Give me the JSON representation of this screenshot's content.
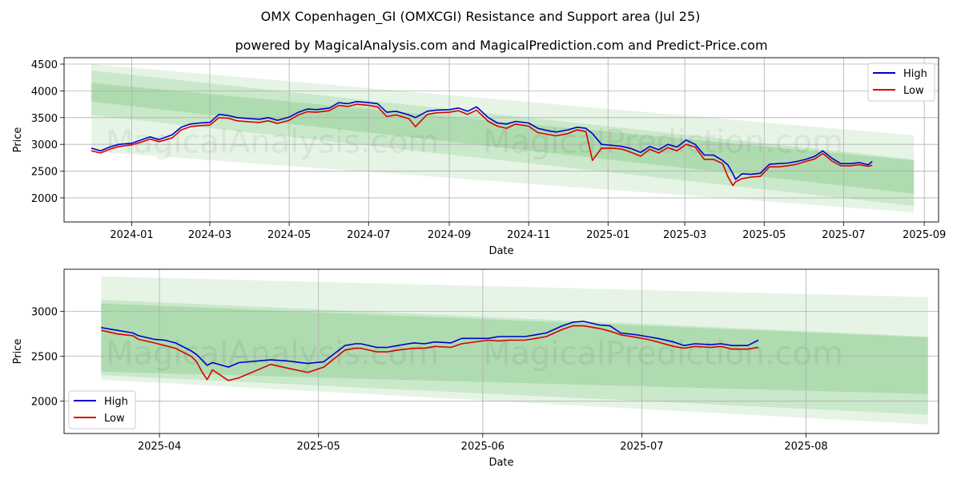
{
  "title": "OMX Copenhagen_GI (OMXCGI) Resistance and Support area (Jul 25)",
  "subtitle": "powered by MagicalAnalysis.com and MagicalPrediction.com and Predict-Price.com",
  "watermarks": [
    "MagicalAnalysis.com",
    "MagicalPrediction.com"
  ],
  "colors": {
    "high": "#0000cc",
    "low": "#dd0000",
    "band": "#4caf50",
    "grid": "#b0b0b0"
  },
  "chart_data": [
    {
      "type": "line",
      "xlabel": "Date",
      "ylabel": "Price",
      "xlim": [
        "2023-11-10",
        "2025-09-12"
      ],
      "ylim": [
        1550,
        4620
      ],
      "grid": true,
      "legend": "top-right",
      "xticks": [
        "2024-01",
        "2024-03",
        "2024-05",
        "2024-07",
        "2024-09",
        "2024-11",
        "2025-01",
        "2025-03",
        "2025-05",
        "2025-07",
        "2025-09"
      ],
      "yticks": [
        2000,
        2500,
        3000,
        3500,
        4000,
        4500
      ],
      "bands": [
        {
          "x": [
            "2023-12-01",
            "2025-08-24"
          ],
          "upper": [
            4500,
            3170
          ],
          "lower": [
            2870,
            1730
          ]
        },
        {
          "x": [
            "2023-12-01",
            "2025-08-24"
          ],
          "upper": [
            4380,
            2720
          ],
          "lower": [
            3550,
            1850
          ]
        },
        {
          "x": [
            "2023-12-01",
            "2025-08-24"
          ],
          "upper": [
            4150,
            2700
          ],
          "lower": [
            3800,
            2080
          ]
        }
      ],
      "series": [
        {
          "name": "High",
          "x": [
            "2023-12-01",
            "2023-12-08",
            "2023-12-15",
            "2023-12-22",
            "2024-01-01",
            "2024-01-08",
            "2024-01-15",
            "2024-01-22",
            "2024-02-01",
            "2024-02-08",
            "2024-02-15",
            "2024-02-22",
            "2024-03-01",
            "2024-03-08",
            "2024-03-15",
            "2024-03-22",
            "2024-04-01",
            "2024-04-08",
            "2024-04-15",
            "2024-04-22",
            "2024-05-01",
            "2024-05-08",
            "2024-05-15",
            "2024-05-22",
            "2024-06-01",
            "2024-06-08",
            "2024-06-15",
            "2024-06-22",
            "2024-07-01",
            "2024-07-08",
            "2024-07-15",
            "2024-07-22",
            "2024-08-01",
            "2024-08-06",
            "2024-08-15",
            "2024-08-22",
            "2024-09-01",
            "2024-09-08",
            "2024-09-15",
            "2024-09-22",
            "2024-10-01",
            "2024-10-08",
            "2024-10-15",
            "2024-10-22",
            "2024-11-01",
            "2024-11-08",
            "2024-11-15",
            "2024-11-22",
            "2024-12-01",
            "2024-12-08",
            "2024-12-15",
            "2024-12-20",
            "2024-12-27",
            "2025-01-05",
            "2025-01-12",
            "2025-01-19",
            "2025-01-26",
            "2025-02-02",
            "2025-02-09",
            "2025-02-16",
            "2025-02-23",
            "2025-03-02",
            "2025-03-09",
            "2025-03-16",
            "2025-03-23",
            "2025-03-30",
            "2025-04-03",
            "2025-04-07",
            "2025-04-09",
            "2025-04-14",
            "2025-04-21",
            "2025-04-28",
            "2025-05-05",
            "2025-05-12",
            "2025-05-19",
            "2025-05-26",
            "2025-06-02",
            "2025-06-09",
            "2025-06-15",
            "2025-06-22",
            "2025-06-29",
            "2025-07-06",
            "2025-07-13",
            "2025-07-20",
            "2025-07-23"
          ],
          "values": [
            2930,
            2880,
            2950,
            3000,
            3020,
            3080,
            3140,
            3090,
            3180,
            3320,
            3380,
            3400,
            3410,
            3560,
            3540,
            3500,
            3480,
            3470,
            3500,
            3450,
            3510,
            3600,
            3660,
            3650,
            3680,
            3780,
            3760,
            3800,
            3780,
            3760,
            3600,
            3620,
            3550,
            3500,
            3620,
            3640,
            3650,
            3680,
            3620,
            3700,
            3500,
            3400,
            3380,
            3430,
            3400,
            3300,
            3260,
            3230,
            3270,
            3320,
            3300,
            3200,
            3000,
            2980,
            2960,
            2920,
            2850,
            2960,
            2900,
            3000,
            2950,
            3080,
            3000,
            2800,
            2800,
            2700,
            2620,
            2450,
            2350,
            2450,
            2440,
            2460,
            2630,
            2640,
            2650,
            2680,
            2720,
            2780,
            2880,
            2740,
            2640,
            2640,
            2660,
            2620,
            2680
          ]
        },
        {
          "name": "Low",
          "x": [
            "2023-12-01",
            "2023-12-08",
            "2023-12-15",
            "2023-12-22",
            "2024-01-01",
            "2024-01-08",
            "2024-01-15",
            "2024-01-22",
            "2024-02-01",
            "2024-02-08",
            "2024-02-15",
            "2024-02-22",
            "2024-03-01",
            "2024-03-08",
            "2024-03-15",
            "2024-03-22",
            "2024-04-01",
            "2024-04-08",
            "2024-04-15",
            "2024-04-22",
            "2024-05-01",
            "2024-05-08",
            "2024-05-15",
            "2024-05-22",
            "2024-06-01",
            "2024-06-08",
            "2024-06-15",
            "2024-06-22",
            "2024-07-01",
            "2024-07-08",
            "2024-07-15",
            "2024-07-22",
            "2024-08-01",
            "2024-08-06",
            "2024-08-15",
            "2024-08-22",
            "2024-09-01",
            "2024-09-08",
            "2024-09-15",
            "2024-09-22",
            "2024-10-01",
            "2024-10-08",
            "2024-10-15",
            "2024-10-22",
            "2024-11-01",
            "2024-11-08",
            "2024-11-15",
            "2024-11-22",
            "2024-12-01",
            "2024-12-08",
            "2024-12-15",
            "2024-12-20",
            "2024-12-27",
            "2025-01-05",
            "2025-01-12",
            "2025-01-19",
            "2025-01-26",
            "2025-02-02",
            "2025-02-09",
            "2025-02-16",
            "2025-02-23",
            "2025-03-02",
            "2025-03-09",
            "2025-03-16",
            "2025-03-23",
            "2025-03-30",
            "2025-04-03",
            "2025-04-07",
            "2025-04-09",
            "2025-04-14",
            "2025-04-21",
            "2025-04-28",
            "2025-05-05",
            "2025-05-12",
            "2025-05-19",
            "2025-05-26",
            "2025-06-02",
            "2025-06-09",
            "2025-06-15",
            "2025-06-22",
            "2025-06-29",
            "2025-07-06",
            "2025-07-13",
            "2025-07-20",
            "2025-07-23"
          ],
          "values": [
            2880,
            2840,
            2910,
            2960,
            2990,
            3040,
            3100,
            3050,
            3120,
            3270,
            3330,
            3350,
            3360,
            3500,
            3490,
            3440,
            3420,
            3410,
            3440,
            3390,
            3450,
            3550,
            3610,
            3600,
            3630,
            3730,
            3710,
            3750,
            3730,
            3700,
            3520,
            3550,
            3480,
            3330,
            3560,
            3590,
            3600,
            3630,
            3560,
            3640,
            3430,
            3340,
            3300,
            3380,
            3340,
            3220,
            3190,
            3160,
            3200,
            3270,
            3240,
            2700,
            2930,
            2930,
            2910,
            2850,
            2780,
            2910,
            2840,
            2940,
            2880,
            3000,
            2950,
            2720,
            2720,
            2640,
            2400,
            2230,
            2300,
            2360,
            2390,
            2400,
            2580,
            2580,
            2600,
            2630,
            2680,
            2730,
            2830,
            2690,
            2600,
            2600,
            2620,
            2590,
            2610
          ]
        }
      ]
    },
    {
      "type": "line",
      "xlabel": "Date",
      "ylabel": "Price",
      "xlim": [
        "2025-03-14",
        "2025-08-26"
      ],
      "ylim": [
        1640,
        3470
      ],
      "grid": true,
      "legend": "bottom-left",
      "xticks": [
        "2025-04",
        "2025-05",
        "2025-06",
        "2025-07",
        "2025-08"
      ],
      "yticks": [
        2000,
        2500,
        3000
      ],
      "bands": [
        {
          "x": [
            "2025-03-21",
            "2025-08-24"
          ],
          "upper": [
            3390,
            3160
          ],
          "lower": [
            2240,
            1740
          ]
        },
        {
          "x": [
            "2025-03-21",
            "2025-08-24"
          ],
          "upper": [
            3130,
            2720
          ],
          "lower": [
            2290,
            1850
          ]
        },
        {
          "x": [
            "2025-03-21",
            "2025-08-24"
          ],
          "upper": [
            3090,
            2710
          ],
          "lower": [
            2330,
            2080
          ]
        }
      ],
      "series": [
        {
          "name": "High",
          "x": [
            "2025-03-21",
            "2025-03-24",
            "2025-03-27",
            "2025-03-28",
            "2025-03-31",
            "2025-04-02",
            "2025-04-04",
            "2025-04-07",
            "2025-04-08",
            "2025-04-09",
            "2025-04-10",
            "2025-04-11",
            "2025-04-14",
            "2025-04-16",
            "2025-04-22",
            "2025-04-25",
            "2025-04-29",
            "2025-05-02",
            "2025-05-06",
            "2025-05-08",
            "2025-05-09",
            "2025-05-12",
            "2025-05-14",
            "2025-05-16",
            "2025-05-19",
            "2025-05-21",
            "2025-05-23",
            "2025-05-26",
            "2025-05-28",
            "2025-06-02",
            "2025-06-04",
            "2025-06-06",
            "2025-06-09",
            "2025-06-11",
            "2025-06-13",
            "2025-06-16",
            "2025-06-18",
            "2025-06-20",
            "2025-06-23",
            "2025-06-25",
            "2025-06-27",
            "2025-06-30",
            "2025-07-02",
            "2025-07-04",
            "2025-07-07",
            "2025-07-09",
            "2025-07-11",
            "2025-07-14",
            "2025-07-16",
            "2025-07-18",
            "2025-07-21",
            "2025-07-23"
          ],
          "values": [
            2820,
            2790,
            2760,
            2730,
            2690,
            2680,
            2650,
            2560,
            2520,
            2460,
            2400,
            2430,
            2380,
            2430,
            2460,
            2450,
            2420,
            2440,
            2620,
            2640,
            2640,
            2600,
            2600,
            2620,
            2650,
            2640,
            2660,
            2650,
            2700,
            2700,
            2720,
            2720,
            2720,
            2740,
            2760,
            2840,
            2880,
            2890,
            2850,
            2840,
            2760,
            2740,
            2720,
            2700,
            2660,
            2620,
            2640,
            2630,
            2640,
            2620,
            2620,
            2680
          ]
        },
        {
          "name": "Low",
          "x": [
            "2025-03-21",
            "2025-03-24",
            "2025-03-27",
            "2025-03-28",
            "2025-03-31",
            "2025-04-02",
            "2025-04-04",
            "2025-04-07",
            "2025-04-08",
            "2025-04-09",
            "2025-04-10",
            "2025-04-11",
            "2025-04-14",
            "2025-04-16",
            "2025-04-22",
            "2025-04-25",
            "2025-04-29",
            "2025-05-02",
            "2025-05-06",
            "2025-05-08",
            "2025-05-09",
            "2025-05-12",
            "2025-05-14",
            "2025-05-16",
            "2025-05-19",
            "2025-05-21",
            "2025-05-23",
            "2025-05-26",
            "2025-05-28",
            "2025-06-02",
            "2025-06-04",
            "2025-06-06",
            "2025-06-09",
            "2025-06-11",
            "2025-06-13",
            "2025-06-16",
            "2025-06-18",
            "2025-06-20",
            "2025-06-23",
            "2025-06-25",
            "2025-06-27",
            "2025-06-30",
            "2025-07-02",
            "2025-07-04",
            "2025-07-07",
            "2025-07-09",
            "2025-07-11",
            "2025-07-14",
            "2025-07-16",
            "2025-07-18",
            "2025-07-21",
            "2025-07-23"
          ],
          "values": [
            2790,
            2750,
            2730,
            2690,
            2650,
            2620,
            2590,
            2500,
            2440,
            2330,
            2240,
            2350,
            2230,
            2260,
            2410,
            2370,
            2320,
            2380,
            2570,
            2590,
            2590,
            2550,
            2550,
            2570,
            2590,
            2590,
            2610,
            2600,
            2640,
            2680,
            2670,
            2680,
            2680,
            2700,
            2720,
            2800,
            2840,
            2840,
            2810,
            2780,
            2740,
            2710,
            2690,
            2660,
            2610,
            2590,
            2610,
            2600,
            2610,
            2580,
            2580,
            2600
          ]
        }
      ]
    }
  ]
}
